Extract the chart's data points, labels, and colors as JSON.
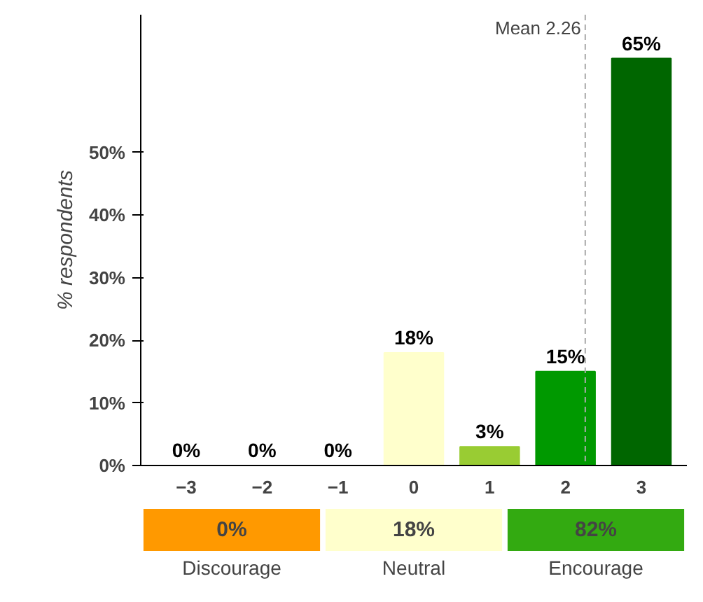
{
  "chart_data": [
    {
      "type": "bar",
      "ylabel": "% respondents",
      "x": [
        -3,
        -2,
        -1,
        0,
        1,
        2,
        3
      ],
      "values": [
        0,
        0,
        0,
        18,
        3,
        15,
        65
      ],
      "colors": [
        "#ff3300",
        "#ff6600",
        "#ff9900",
        "#ffffcc",
        "#99cc33",
        "#009900",
        "#006600"
      ],
      "value_labels": [
        "0%",
        "0%",
        "0%",
        "18%",
        "3%",
        "15%",
        "65%"
      ],
      "xlim": [
        -3.6,
        3.6
      ],
      "xticks": [
        -3,
        -2,
        -1,
        0,
        1,
        2,
        3
      ],
      "ylim": [
        0,
        72
      ],
      "yticks": [
        {
          "value": 0,
          "label": "0%"
        },
        {
          "value": 10,
          "label": "10%"
        },
        {
          "value": 20,
          "label": "20%"
        },
        {
          "value": 30,
          "label": "30%"
        },
        {
          "value": 40,
          "label": "40%"
        },
        {
          "value": 50,
          "label": "50%"
        }
      ],
      "ref_lines": [
        {
          "axis": "x",
          "value": 2.26,
          "label": "Mean 2.26",
          "color": "#aaaaaa",
          "line_style": "dashed"
        }
      ],
      "grid": false
    },
    {
      "type": "other",
      "categories": [
        "Discourage",
        "Neutral",
        "Encourage"
      ],
      "value_labels": [
        "0%",
        "18%",
        "82%"
      ],
      "colors": [
        "#ff9900",
        "#ffffcc",
        "#33aa11"
      ]
    }
  ]
}
